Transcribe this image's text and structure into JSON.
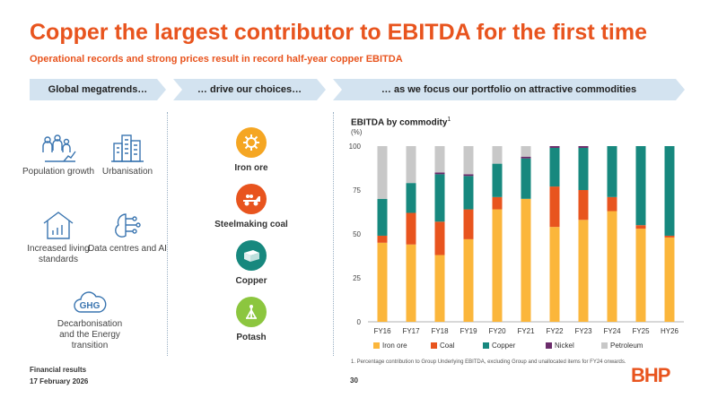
{
  "header": {
    "title": "Copper the largest contributor to EBITDA for the first time",
    "subtitle": "Operational records and strong prices result in record half-year copper EBITDA"
  },
  "banners": {
    "megatrends": "Global megatrends…",
    "choices": "… drive our choices…",
    "portfolio": "… as we focus our portfolio on attractive commodities"
  },
  "megatrends": [
    {
      "label": "Population growth",
      "icon": "population-icon"
    },
    {
      "label": "Urbanisation",
      "icon": "city-icon"
    },
    {
      "label": "Increased living standards",
      "icon": "house-chart-icon"
    },
    {
      "label": "Data centres and AI",
      "icon": "ai-chip-icon"
    },
    {
      "label": "Decarbonisation and the Energy transition",
      "icon": "ghg-cloud-icon",
      "badge": "GHG"
    }
  ],
  "commodities": [
    {
      "label": "Iron ore",
      "icon": "iron-ore-gear-icon",
      "color": "#f5a623"
    },
    {
      "label": "Steelmaking coal",
      "icon": "coal-truck-icon",
      "color": "#e8541e"
    },
    {
      "label": "Copper",
      "icon": "copper-cathode-icon",
      "color": "#17887e"
    },
    {
      "label": "Potash",
      "icon": "potash-plant-icon",
      "color": "#8cc63f"
    }
  ],
  "chart_data": {
    "type": "bar",
    "stacked": true,
    "title": "EBITDA by commodity",
    "title_footnote": "1",
    "unit": "(%)",
    "ylim": [
      0,
      100
    ],
    "yticks": [
      0,
      25,
      50,
      75,
      100
    ],
    "categories": [
      "FY16",
      "FY17",
      "FY18",
      "FY19",
      "FY20",
      "FY21",
      "FY22",
      "FY23",
      "FY24",
      "FY25",
      "HY26"
    ],
    "series": [
      {
        "name": "Iron ore",
        "color": "#fbb63b",
        "values": [
          45,
          44,
          38,
          47,
          64,
          70,
          54,
          58,
          63,
          53,
          48
        ]
      },
      {
        "name": "Coal",
        "color": "#e8541e",
        "values": [
          4,
          18,
          19,
          17,
          7,
          0,
          23,
          17,
          8,
          2,
          1
        ]
      },
      {
        "name": "Copper",
        "color": "#17887e",
        "values": [
          21,
          17,
          27,
          19,
          19,
          23,
          22,
          24,
          29,
          45,
          51
        ]
      },
      {
        "name": "Nickel",
        "color": "#6b2c6b",
        "values": [
          0,
          0,
          1,
          1,
          0,
          1,
          1,
          1,
          0,
          0,
          0
        ]
      },
      {
        "name": "Petroleum",
        "color": "#c8c8c8",
        "values": [
          30,
          21,
          15,
          16,
          10,
          6,
          0,
          0,
          0,
          0,
          0
        ]
      }
    ]
  },
  "footnote": "1.   Percentage contribution to Group Underlying EBITDA, excluding Group and unallocated items for FY24 onwards.",
  "footer": {
    "line1": "Financial results",
    "line2": "17 February 2026",
    "page": "30",
    "logo": "BHP"
  }
}
